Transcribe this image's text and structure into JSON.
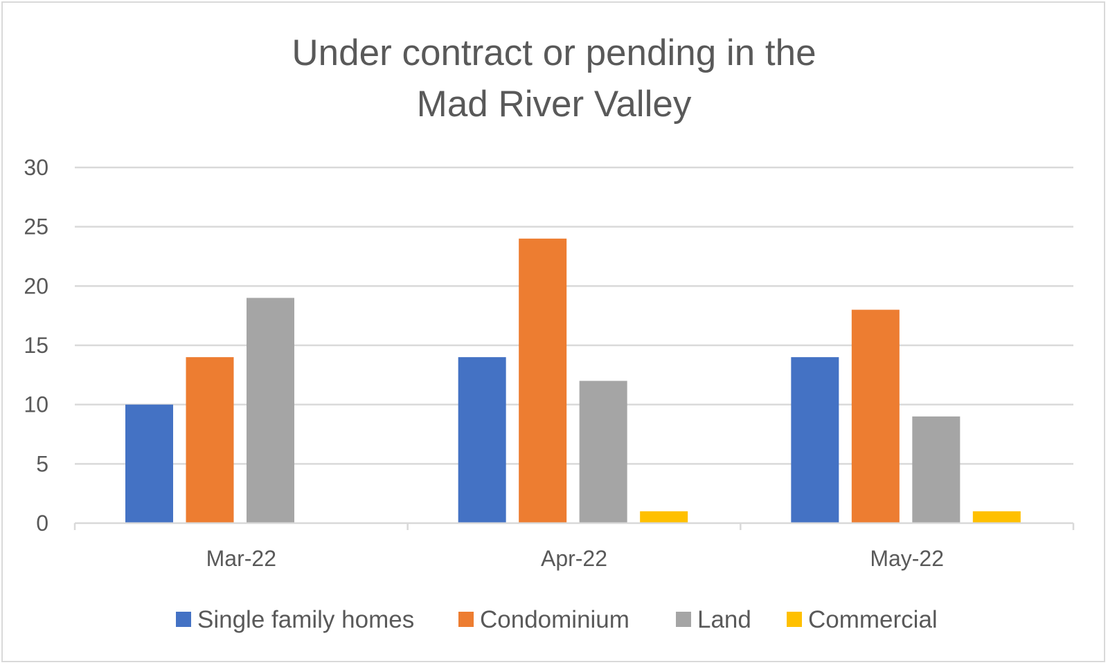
{
  "chart_data": {
    "type": "bar",
    "title_lines": [
      "Under contract or pending in the",
      "Mad River Valley"
    ],
    "categories": [
      "Mar-22",
      "Apr-22",
      "May-22"
    ],
    "series": [
      {
        "name": "Single family homes",
        "color": "#4472c4",
        "values": [
          10,
          14,
          14
        ]
      },
      {
        "name": "Condominium",
        "color": "#ed7d31",
        "values": [
          14,
          24,
          18
        ]
      },
      {
        "name": "Land",
        "color": "#a5a5a5",
        "values": [
          19,
          12,
          9
        ]
      },
      {
        "name": "Commercial",
        "color": "#ffc000",
        "values": [
          0,
          1,
          1
        ]
      }
    ],
    "ylim": [
      0,
      30
    ],
    "yticks": [
      0,
      5,
      10,
      15,
      20,
      25,
      30
    ],
    "grid": true,
    "legend_position": "bottom",
    "xlabel": "",
    "ylabel": ""
  }
}
